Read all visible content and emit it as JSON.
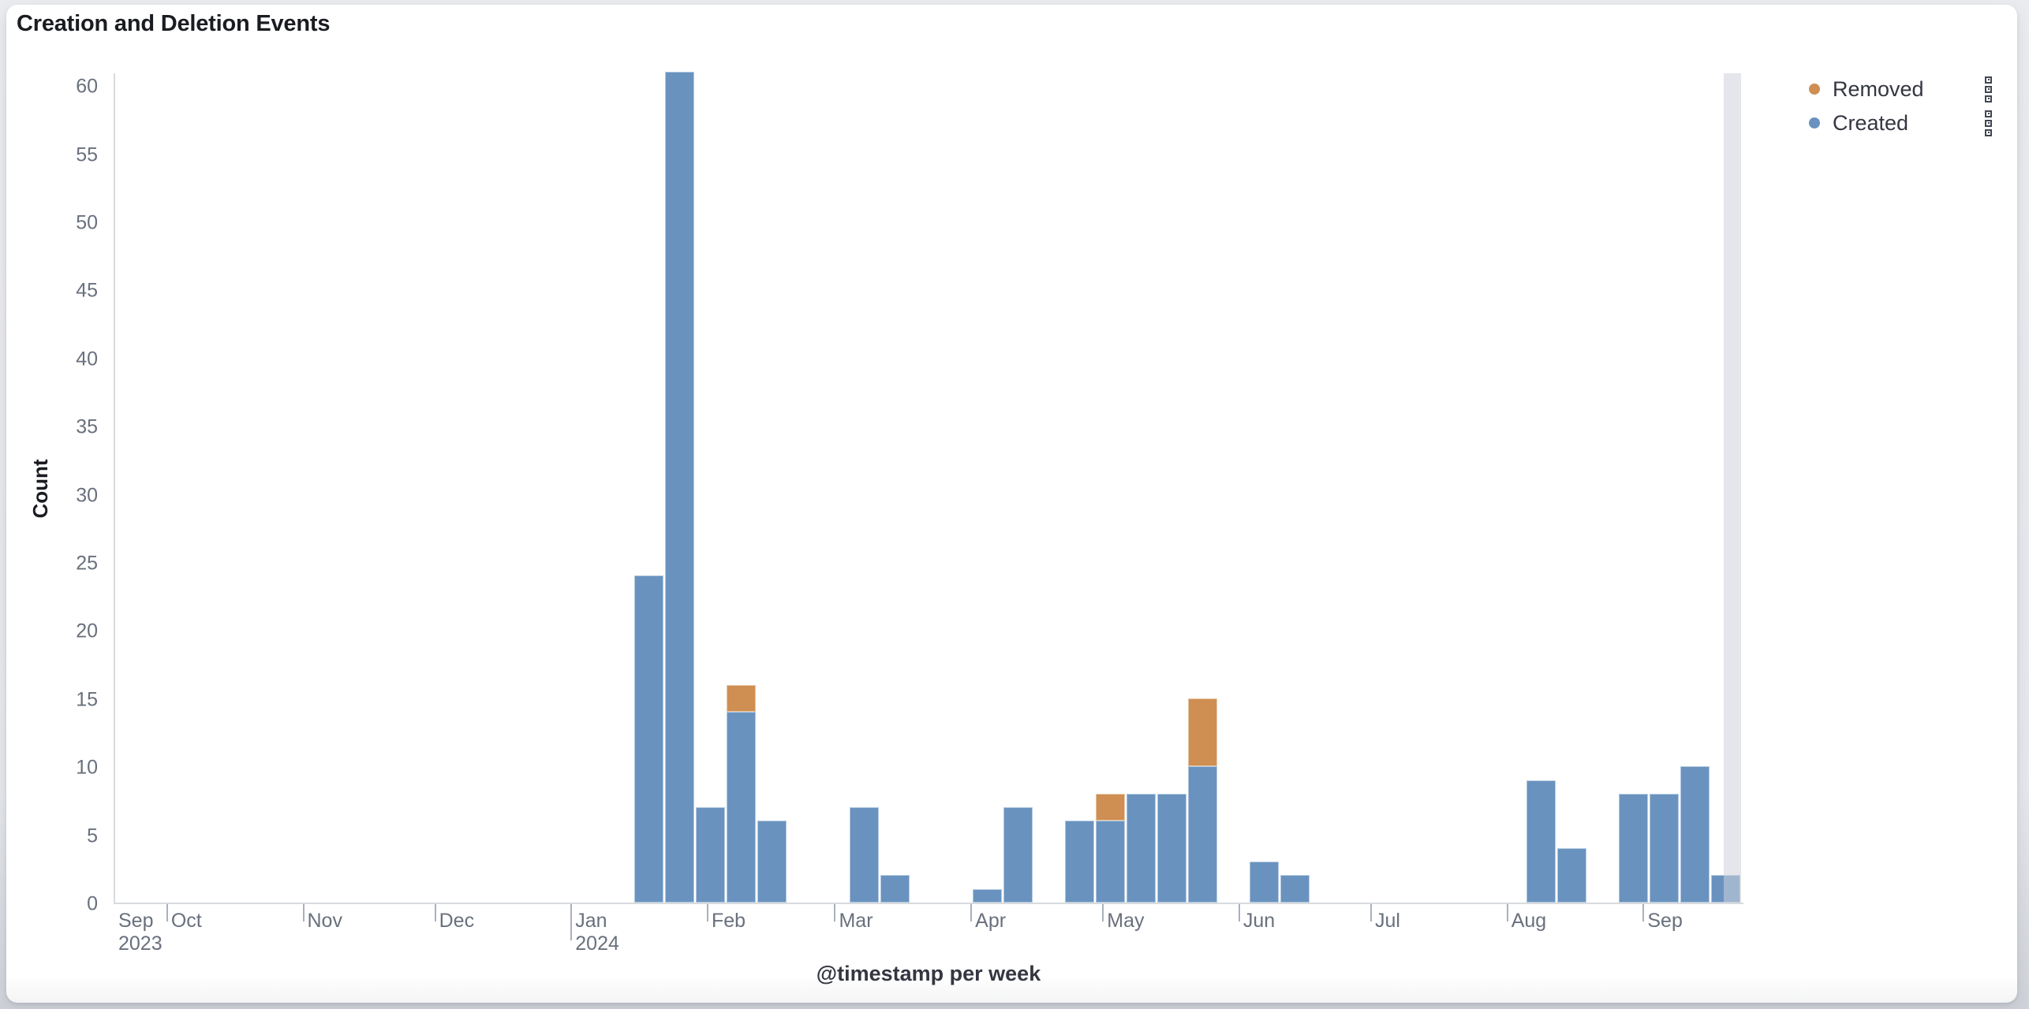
{
  "title": "Creation and Deletion Events",
  "y_axis": {
    "title": "Count",
    "ticks": [
      0,
      5,
      10,
      15,
      20,
      25,
      30,
      35,
      40,
      45,
      50,
      55,
      60
    ]
  },
  "x_axis": {
    "title": "@timestamp per week",
    "month_ticks": [
      {
        "label": "Sep",
        "sublabel": "2023",
        "date": "2023-09-19",
        "tick": false
      },
      {
        "label": "Oct",
        "date": "2023-10-01",
        "tick": true
      },
      {
        "label": "Nov",
        "date": "2023-11-01",
        "tick": true
      },
      {
        "label": "Dec",
        "date": "2023-12-01",
        "tick": true
      },
      {
        "label": "Jan",
        "sublabel": "2024",
        "date": "2024-01-01",
        "tick": true,
        "tall": true
      },
      {
        "label": "Feb",
        "date": "2024-02-01",
        "tick": true
      },
      {
        "label": "Mar",
        "date": "2024-03-01",
        "tick": true
      },
      {
        "label": "Apr",
        "date": "2024-04-01",
        "tick": true
      },
      {
        "label": "May",
        "date": "2024-05-01",
        "tick": true
      },
      {
        "label": "Jun",
        "date": "2024-06-01",
        "tick": true
      },
      {
        "label": "Jul",
        "date": "2024-07-01",
        "tick": true
      },
      {
        "label": "Aug",
        "date": "2024-08-01",
        "tick": true
      },
      {
        "label": "Sep",
        "date": "2024-09-01",
        "tick": true
      }
    ]
  },
  "legend": {
    "action_icon": "vertical-dots-icon",
    "items": [
      {
        "key": "removed",
        "label": "Removed",
        "color": "#CF8E52"
      },
      {
        "key": "created",
        "label": "Created",
        "color": "#6992BF"
      }
    ]
  },
  "chart_data": {
    "type": "bar",
    "stacked": true,
    "title": "Creation and Deletion Events",
    "xlabel": "@timestamp per week",
    "ylabel": "Count",
    "ylim": [
      0,
      61
    ],
    "x_range": [
      "2023-09-19",
      "2024-09-24"
    ],
    "bucket_interval": "1 week",
    "grid": false,
    "legend_position": "right",
    "series": [
      {
        "name": "Removed",
        "color": "#CF8E52",
        "stack_order": "top"
      },
      {
        "name": "Created",
        "color": "#6992BF",
        "stack_order": "bottom"
      }
    ],
    "weeks": [
      {
        "week_start": "2024-01-15",
        "created": 24,
        "removed": 0
      },
      {
        "week_start": "2024-01-22",
        "created": 61,
        "removed": 0
      },
      {
        "week_start": "2024-01-29",
        "created": 7,
        "removed": 0
      },
      {
        "week_start": "2024-02-05",
        "created": 14,
        "removed": 2
      },
      {
        "week_start": "2024-02-12",
        "created": 6,
        "removed": 0
      },
      {
        "week_start": "2024-03-04",
        "created": 7,
        "removed": 0
      },
      {
        "week_start": "2024-03-11",
        "created": 2,
        "removed": 0
      },
      {
        "week_start": "2024-04-01",
        "created": 1,
        "removed": 0
      },
      {
        "week_start": "2024-04-08",
        "created": 7,
        "removed": 0
      },
      {
        "week_start": "2024-04-22",
        "created": 6,
        "removed": 0
      },
      {
        "week_start": "2024-04-29",
        "created": 6,
        "removed": 2
      },
      {
        "week_start": "2024-05-06",
        "created": 8,
        "removed": 0
      },
      {
        "week_start": "2024-05-13",
        "created": 8,
        "removed": 0
      },
      {
        "week_start": "2024-05-20",
        "created": 10,
        "removed": 5
      },
      {
        "week_start": "2024-06-03",
        "created": 3,
        "removed": 0
      },
      {
        "week_start": "2024-06-10",
        "created": 2,
        "removed": 0
      },
      {
        "week_start": "2024-08-05",
        "created": 9,
        "removed": 0
      },
      {
        "week_start": "2024-08-12",
        "created": 4,
        "removed": 0
      },
      {
        "week_start": "2024-08-26",
        "created": 8,
        "removed": 0
      },
      {
        "week_start": "2024-09-02",
        "created": 8,
        "removed": 0
      },
      {
        "week_start": "2024-09-09",
        "created": 10,
        "removed": 0
      },
      {
        "week_start": "2024-09-16",
        "created": 2,
        "removed": 0
      }
    ],
    "partial_bucket": {
      "from": "2024-09-19",
      "to": "2024-09-23"
    }
  }
}
